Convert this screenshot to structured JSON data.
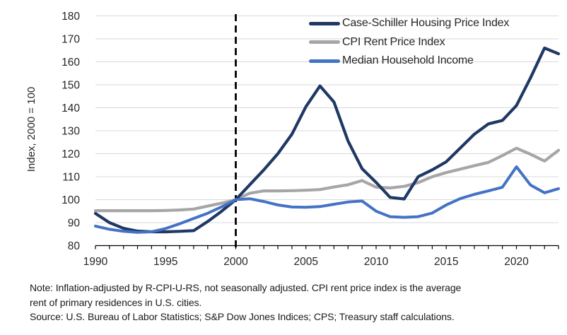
{
  "chart_data": {
    "type": "line",
    "title": "",
    "ylabel": "Index, 2000 = 100",
    "ylim": [
      80,
      180
    ],
    "ytick_step": 10,
    "xlim": [
      1990,
      2023
    ],
    "xticks": [
      1990,
      1995,
      2000,
      2005,
      2010,
      2015,
      2020
    ],
    "minor_xtick_step": 1,
    "grid": "horizontal",
    "gridline_color": "#d9d9d9",
    "axis_color": "#000000",
    "tick_color": "#000000",
    "reference_line": {
      "x": 2000,
      "style": "dashed",
      "color": "#000000"
    },
    "legend_position": "top-right-inside",
    "x": [
      1990,
      1991,
      1992,
      1993,
      1994,
      1995,
      1996,
      1997,
      1998,
      1999,
      2000,
      2001,
      2002,
      2003,
      2004,
      2005,
      2006,
      2007,
      2008,
      2009,
      2010,
      2011,
      2012,
      2013,
      2014,
      2015,
      2016,
      2017,
      2018,
      2019,
      2020,
      2021,
      2022,
      2023
    ],
    "series": [
      {
        "name": "Case-Schiller Housing Price Index",
        "color": "#1f3864",
        "line_width": 4.2,
        "values": [
          94,
          90,
          87.5,
          86.3,
          86,
          86,
          86.2,
          86.5,
          90.5,
          95,
          100,
          106.5,
          113,
          120,
          128.5,
          140.5,
          149.5,
          142.5,
          125.5,
          113.5,
          107.5,
          101,
          100.3,
          110,
          113,
          116.5,
          122.5,
          128.5,
          133,
          134.5,
          141,
          153,
          166,
          163.5
        ]
      },
      {
        "name": "CPI Rent Price Index",
        "color": "#a6a6a6",
        "line_width": 4.2,
        "values": [
          95.2,
          95.2,
          95.2,
          95.2,
          95.2,
          95.3,
          95.5,
          95.9,
          97.2,
          98.5,
          100,
          102.8,
          103.8,
          103.8,
          103.9,
          104.1,
          104.4,
          105.5,
          106.5,
          108.3,
          105.4,
          105.1,
          105.8,
          107.4,
          110,
          111.8,
          113.3,
          114.8,
          116.2,
          119.2,
          122.4,
          119.8,
          116.8,
          121.5
        ]
      },
      {
        "name": "Median Household Income",
        "color": "#4472c4",
        "line_width": 4,
        "values": [
          88.5,
          87.1,
          86.2,
          85.8,
          86,
          87.4,
          89.5,
          91.8,
          94.1,
          96.9,
          100,
          100.4,
          99.2,
          97.7,
          96.8,
          96.7,
          97,
          98,
          99,
          99.4,
          95,
          92.6,
          92.3,
          92.6,
          94.2,
          97.7,
          100.5,
          102.3,
          103.8,
          105.4,
          114.3,
          106.4,
          103,
          104.8
        ]
      }
    ]
  },
  "footnote": {
    "note_line1": "Note: Inflation-adjusted by R-CPI-U-RS, not seasonally adjusted. CPI rent price index is the average",
    "note_line2": "rent of primary residences in U.S. cities.",
    "source": "Source: U.S. Bureau of Labor Statistics; S&P Dow Jones Indices; CPS; Treasury staff calculations."
  }
}
